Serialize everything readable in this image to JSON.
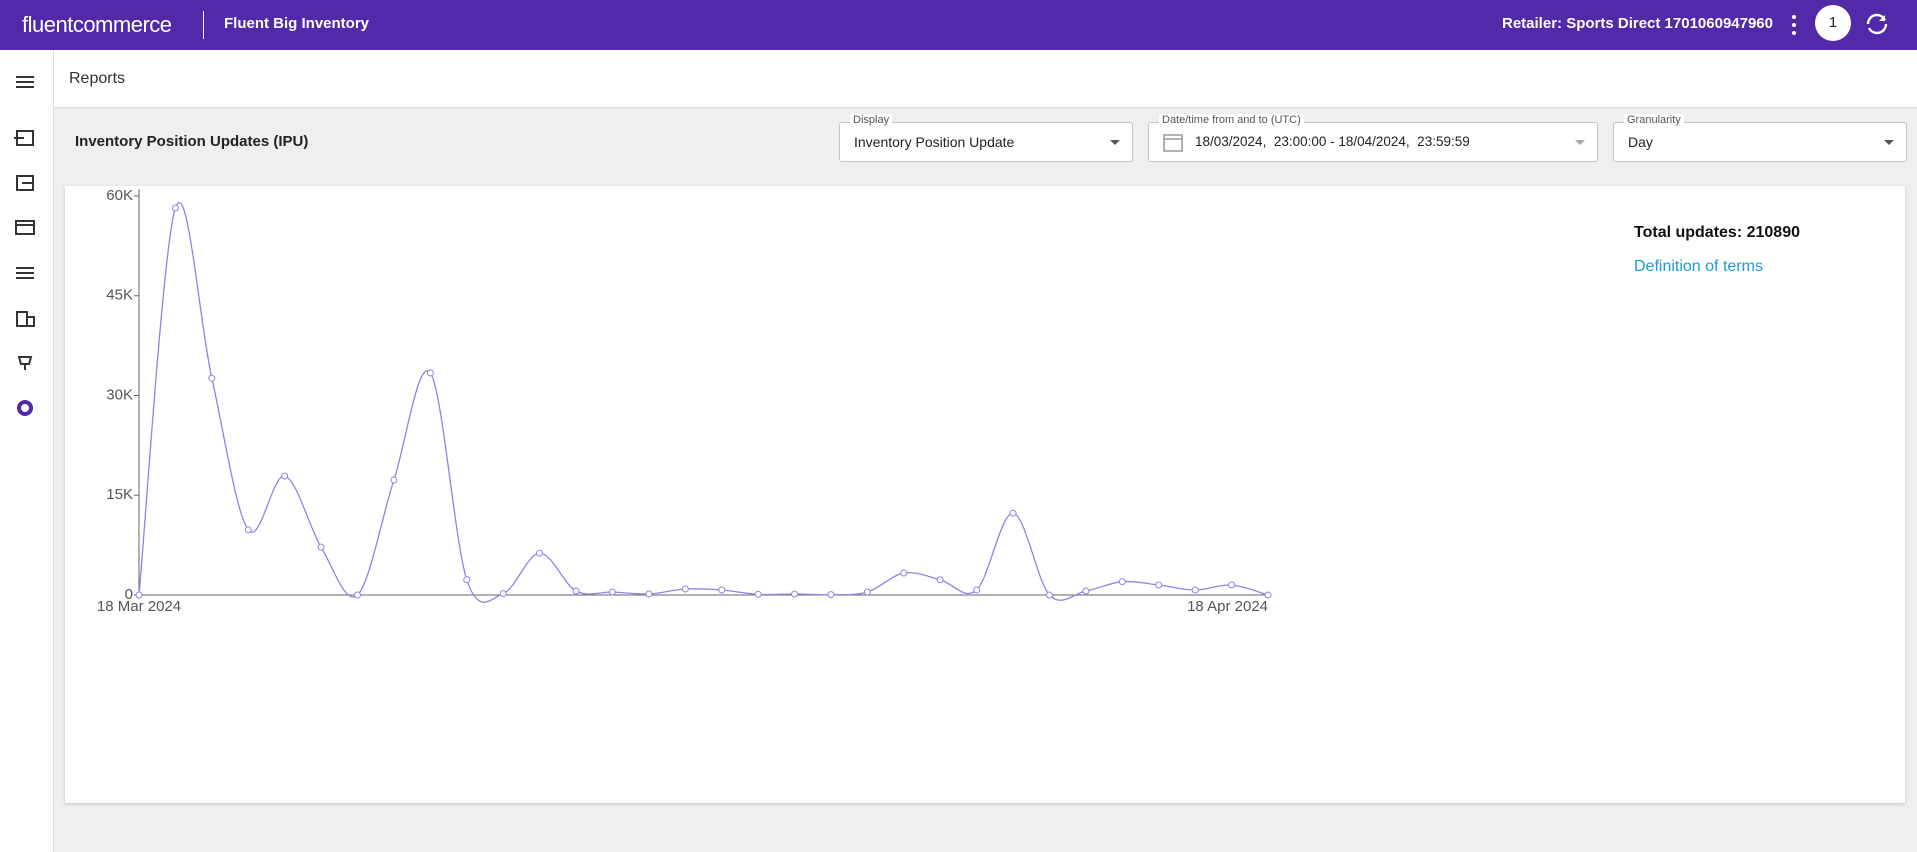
{
  "header": {
    "logo": "fluentcommerce",
    "app": "Fluent Big Inventory",
    "retailer": "Retailer: Sports Direct 1701060947960",
    "badge": "1"
  },
  "breadcrumb": "Reports",
  "report": {
    "title": "Inventory Position Updates (IPU)",
    "filters": [
      {
        "label": "Display",
        "value": "Inventory Position Update"
      },
      {
        "label": "Date/time from and to (UTC)",
        "value": "18/03/2024,  23:00:00 - 18/04/2024,  23:59:59"
      },
      {
        "label": "Granularity",
        "value": "Day"
      }
    ],
    "total": "Total updates: 210890",
    "link": "Definition of terms"
  },
  "chart_data": {
    "type": "line",
    "categories": [
      "18 Mar 2024",
      null,
      null,
      null,
      null,
      null,
      null,
      null,
      null,
      null,
      null,
      null,
      null,
      null,
      null,
      null,
      null,
      null,
      null,
      null,
      null,
      null,
      null,
      null,
      null,
      null,
      null,
      null,
      null,
      null,
      null,
      "18 Apr 2024"
    ],
    "series": [
      {
        "name": "Inventory Position Update",
        "color": "#8d84e6",
        "values": [
          0,
          58200,
          32600,
          9800,
          17900,
          7200,
          0,
          17300,
          33400,
          2300,
          200,
          6300,
          600,
          450,
          150,
          900,
          750,
          100,
          150,
          50,
          450,
          3300,
          2300,
          750,
          12300,
          0,
          600,
          2000,
          1500,
          750,
          1500,
          0
        ]
      }
    ],
    "ylim": [
      0,
      60000
    ],
    "yticks": [
      0,
      {
        "value": 15000,
        "label": "15K"
      },
      {
        "value": 30000,
        "label": "30K"
      },
      {
        "value": 45000,
        "label": "45K"
      },
      {
        "value": 60000,
        "label": "60K"
      }
    ]
  }
}
